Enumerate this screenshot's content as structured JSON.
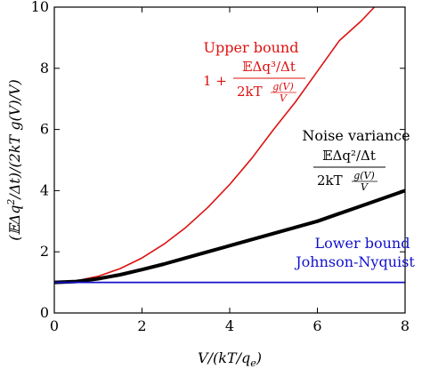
{
  "chart_data": {
    "type": "line",
    "xlabel": "V/(kT/q_e)",
    "ylabel": "(𝔼Δq²/Δt)/(2kT g(V)/V)",
    "xlim": [
      0,
      8
    ],
    "ylim": [
      0,
      10
    ],
    "xticks": [
      "0",
      "2",
      "4",
      "6",
      "8"
    ],
    "yticks": [
      "0",
      "2",
      "4",
      "6",
      "8",
      "10"
    ],
    "grid": false,
    "series": [
      {
        "name": "Upper bound",
        "color": "#dd1111",
        "x": [
          0,
          0.5,
          1,
          1.5,
          2,
          2.5,
          3,
          3.5,
          4,
          4.5,
          5,
          5.5,
          6,
          6.5,
          7,
          7.3
        ],
        "y": [
          1.0,
          1.05,
          1.2,
          1.45,
          1.8,
          2.25,
          2.8,
          3.45,
          4.2,
          5.05,
          6.0,
          6.9,
          7.9,
          8.9,
          9.55,
          10.0
        ]
      },
      {
        "name": "Noise variance",
        "color": "#000000",
        "x": [
          0,
          0.5,
          1,
          1.5,
          2,
          2.5,
          3,
          3.5,
          4,
          4.5,
          5,
          5.5,
          6,
          6.5,
          7,
          7.5,
          8
        ],
        "y": [
          1.0,
          1.03,
          1.12,
          1.25,
          1.42,
          1.6,
          1.8,
          2.0,
          2.2,
          2.4,
          2.6,
          2.8,
          3.0,
          3.25,
          3.5,
          3.75,
          4.0
        ]
      },
      {
        "name": "Lower bound Johnson-Nyquist",
        "color": "#1111cc",
        "x": [
          0,
          8
        ],
        "y": [
          1.0,
          1.0
        ]
      }
    ],
    "annotations": {
      "upper_title": "Upper bound",
      "upper_one_plus": "1 +",
      "upper_num": "𝔼Δq³/Δt",
      "upper_den_main": "2kT",
      "upper_den_top": "g(V)",
      "upper_den_bot": "V",
      "noise_title": "Noise variance",
      "noise_num": "𝔼Δq²/Δt",
      "noise_den_main": "2kT",
      "noise_den_top": "g(V)",
      "noise_den_bot": "V",
      "lower_title": "Lower bound",
      "lower_sub": "Johnson-Nyquist"
    },
    "colors": {
      "upper": "#dd1111",
      "noise": "#000000",
      "lower": "#1111cc"
    }
  }
}
